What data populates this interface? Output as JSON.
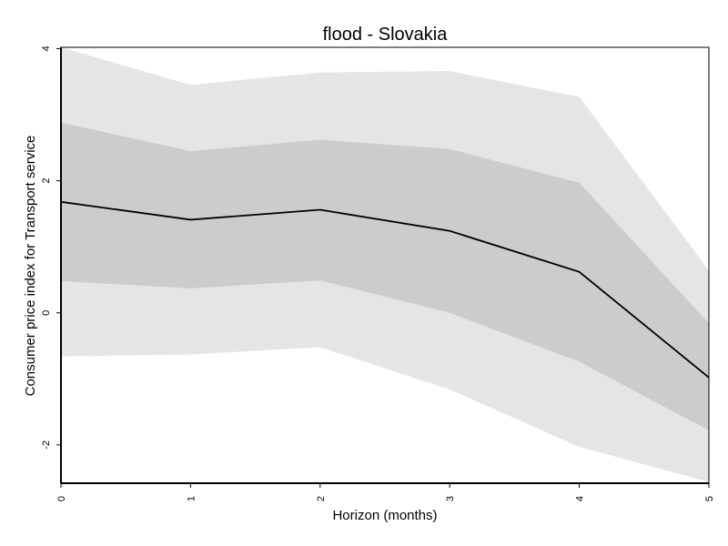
{
  "chart_data": {
    "type": "line",
    "title": "flood - Slovakia",
    "xlabel": "Horizon (months)",
    "ylabel": "Consumer price index for Transport service",
    "x": [
      0,
      1,
      2,
      3,
      4,
      5
    ],
    "xlim": [
      0,
      5
    ],
    "ylim": [
      -2.58,
      4.02
    ],
    "xticks": [
      "0",
      "1",
      "2",
      "3",
      "4",
      "5"
    ],
    "yticks": [
      -2,
      0,
      2,
      4
    ],
    "grid": false,
    "series": [
      {
        "values": [
          1.68,
          1.41,
          1.56,
          1.24,
          0.62,
          -0.98
        ],
        "color": "#000000"
      }
    ],
    "bands": [
      {
        "lower": [
          -0.66,
          -0.63,
          -0.52,
          -1.16,
          -2.03,
          -2.56
        ],
        "upper": [
          4.02,
          3.45,
          3.64,
          3.66,
          3.27,
          0.64
        ],
        "color": "#e5e5e5"
      },
      {
        "lower": [
          0.48,
          0.37,
          0.49,
          0.0,
          -0.74,
          -1.78
        ],
        "upper": [
          2.88,
          2.45,
          2.62,
          2.48,
          1.97,
          -0.16
        ],
        "color": "#cccccc"
      }
    ]
  }
}
